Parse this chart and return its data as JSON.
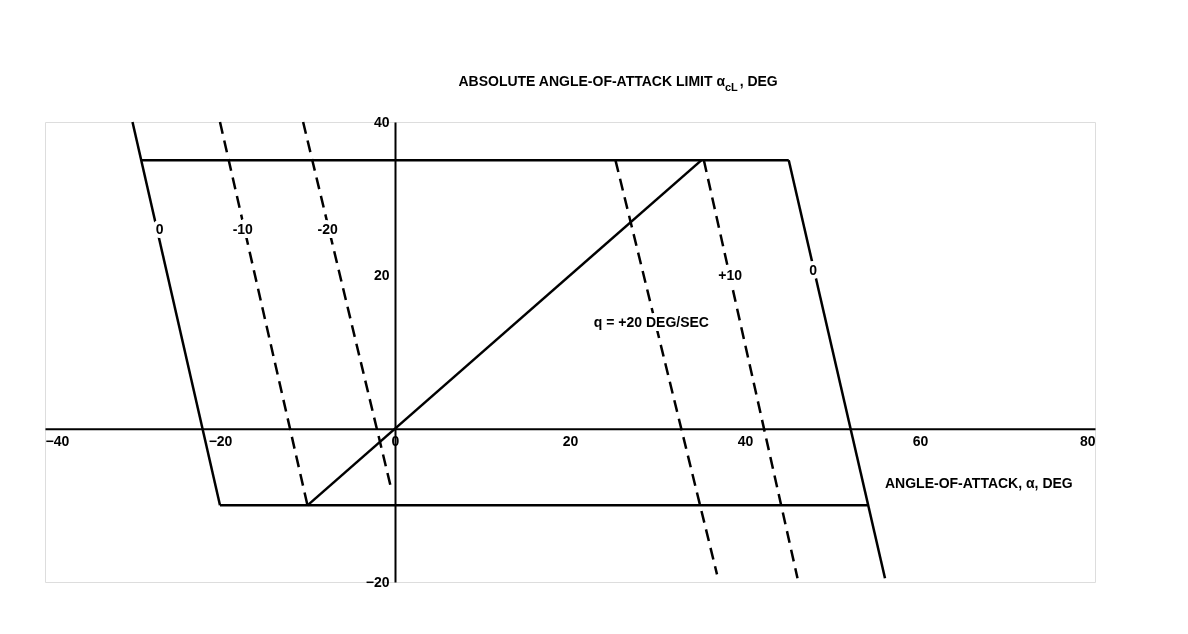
{
  "chart_data": {
    "type": "line",
    "ylabel": "ABSOLUTE ANGLE-OF-ATTACK LIMIT α$_{cL}$, DEG",
    "xlabel": "ANGLE-OF-ATTACK, α, DEG",
    "xlim": [
      -40,
      80
    ],
    "xticks": [
      -40,
      -20,
      0,
      20,
      40,
      60,
      80
    ],
    "ylim": [
      -20,
      40
    ],
    "yticks": [
      -20,
      20,
      40
    ],
    "grid": false,
    "marker": "none",
    "series": [
      {
        "color": "#000000",
        "line_style": "solid",
        "x": [
          -29,
          45
        ],
        "values": [
          35,
          35
        ]
      },
      {
        "color": "#000000",
        "line_style": "solid",
        "x": [
          -20,
          54
        ],
        "values": [
          -10,
          -10
        ]
      },
      {
        "color": "#000000",
        "line_style": "solid",
        "x": [
          -30,
          -20
        ],
        "values": [
          40,
          -10
        ]
      },
      {
        "color": "#000000",
        "line_style": "dashed",
        "x": [
          -20,
          -10
        ],
        "values": [
          40,
          -10
        ]
      },
      {
        "color": "#000000",
        "line_style": "dashed",
        "x": [
          -10.5,
          -0.5
        ],
        "values": [
          40,
          -7.5
        ]
      },
      {
        "color": "#000000",
        "line_style": "solid",
        "x": [
          -10,
          35
        ],
        "values": [
          -10,
          35
        ]
      },
      {
        "color": "#000000",
        "line_style": "dashed",
        "x": [
          25.2,
          36.8
        ],
        "values": [
          35,
          -19
        ]
      },
      {
        "color": "#000000",
        "line_style": "dashed",
        "x": [
          35.3,
          46
        ],
        "values": [
          35,
          -19.5
        ]
      },
      {
        "color": "#000000",
        "line_style": "solid",
        "x": [
          45,
          56
        ],
        "values": [
          35,
          -19.5
        ]
      }
    ],
    "annotations": [
      {
        "text": "0",
        "x": -26.9,
        "y": 25.9
      },
      {
        "text": "-10",
        "x": -17.4,
        "y": 25.9
      },
      {
        "text": "-20",
        "x": -7.7,
        "y": 25.9
      },
      {
        "text": "+10",
        "x": 38.3,
        "y": 19.9
      },
      {
        "text": "0",
        "x": 47.8,
        "y": 20.6
      },
      {
        "text": "q = +20 DEG/SEC",
        "x": 29.3,
        "y": 13.8
      }
    ]
  }
}
